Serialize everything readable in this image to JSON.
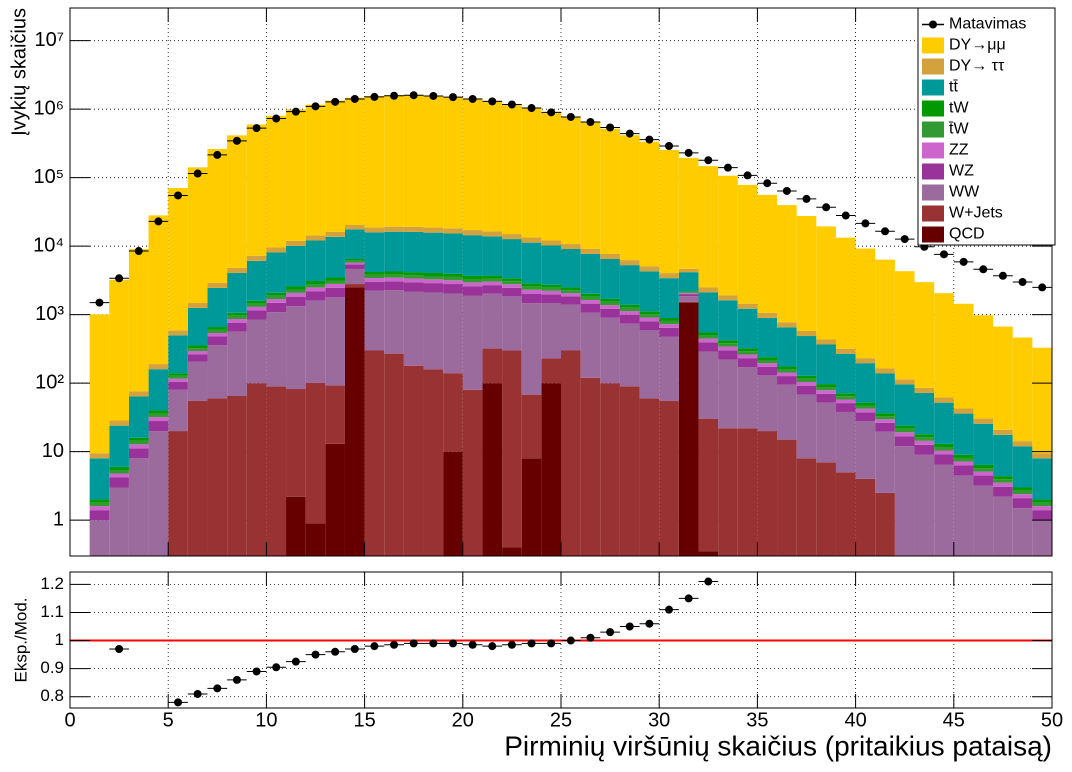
{
  "chart_data": [
    {
      "type": "stacked-histogram",
      "ylabel": "Įvykių skaičius",
      "bins": [
        1,
        2,
        3,
        4,
        5,
        6,
        7,
        8,
        9,
        10,
        11,
        12,
        13,
        14,
        15,
        16,
        17,
        18,
        19,
        20,
        21,
        22,
        23,
        24,
        25,
        26,
        27,
        28,
        29,
        30,
        31,
        32,
        33,
        34,
        35,
        36,
        37,
        38,
        39,
        40,
        41,
        42,
        43,
        44,
        45,
        46,
        47,
        48,
        49,
        50
      ],
      "xlim": [
        0,
        50
      ],
      "xticks": [
        0,
        5,
        10,
        15,
        20,
        25,
        30,
        35,
        40,
        45,
        50
      ],
      "ylim": [
        0.3,
        30000000
      ],
      "yticks": [
        1,
        10,
        {
          "value": 100,
          "label": "10²"
        },
        {
          "value": 1000,
          "label": "10³"
        },
        {
          "value": 10000,
          "label": "10⁴"
        },
        {
          "value": 100000,
          "label": "10⁵"
        },
        {
          "value": 1000000,
          "label": "10⁶"
        },
        {
          "value": 10000000,
          "label": "10⁷"
        }
      ],
      "log_y": true,
      "grid": true,
      "legend": "top-right",
      "data": {
        "name": "Matavimas",
        "color": "#000000",
        "values": [
          1500,
          3400,
          8500,
          23000,
          55000,
          115000,
          215000,
          345000,
          530000,
          730000,
          920000,
          1100000,
          1280000,
          1410000,
          1510000,
          1570000,
          1600000,
          1560000,
          1500000,
          1410000,
          1300000,
          1170000,
          1040000,
          900000,
          770000,
          650000,
          540000,
          440000,
          360000,
          290000,
          230000,
          180000,
          140000,
          108000,
          83000,
          64000,
          49000,
          37000,
          28000,
          21500,
          16500,
          12700,
          9800,
          7600,
          5900,
          4600,
          3700,
          3000,
          2500
        ]
      },
      "series": [
        {
          "name": "DY→μμ",
          "color": "#ffcc00",
          "values": [
            1000,
            3200,
            9000,
            28000,
            70000,
            140000,
            260000,
            410000,
            590000,
            790000,
            980000,
            1150000,
            1320000,
            1450000,
            1530000,
            1580000,
            1600000,
            1560000,
            1500000,
            1420000,
            1310000,
            1180000,
            1040000,
            900000,
            760000,
            630000,
            510000,
            410000,
            330000,
            250000,
            190000,
            145000,
            105000,
            77000,
            55000,
            39000,
            27000,
            19000,
            13000,
            9000,
            6200,
            4200,
            2900,
            2000,
            1400,
            950,
            650,
            450,
            320
          ]
        },
        {
          "name": "DY→ ττ",
          "color": "#d4a23c",
          "values": [
            1.5,
            4.5,
            12,
            30,
            90,
            225,
            450,
            750,
            1125,
            1500,
            1875,
            2250,
            2550,
            2775,
            2925,
            3000,
            3000,
            2925,
            2850,
            2700,
            2550,
            2325,
            2100,
            1875,
            1650,
            1425,
            1200,
            975,
            795,
            630,
            495,
            390,
            300,
            225,
            165,
            120,
            90,
            67.5,
            49.5,
            36,
            25.5,
            18,
            13.5,
            9.75,
            6.75,
            4.8,
            3.3,
            2.25,
            1.5
          ]
        },
        {
          "name": "tt̄",
          "color": "#009999",
          "values": [
            6,
            18,
            48,
            120,
            360,
            900,
            1800,
            3000,
            4500,
            6000,
            7500,
            9000,
            10200,
            11100,
            11700,
            12000,
            12000,
            11700,
            11400,
            10800,
            10200,
            9300,
            8400,
            7500,
            6600,
            5700,
            4800,
            3900,
            3180,
            2520,
            1980,
            1560,
            1200,
            900,
            660,
            480,
            360,
            270,
            198,
            144,
            102,
            72,
            54,
            39,
            27,
            19.2,
            13.2,
            9,
            6
          ]
        },
        {
          "name": "tW",
          "color": "#009900",
          "values": [
            0.2,
            0.6,
            1.6,
            4,
            12,
            30,
            60,
            100,
            150,
            200,
            250,
            300,
            340,
            370,
            390,
            400,
            400,
            390,
            380,
            360,
            340,
            310,
            280,
            250,
            220,
            190,
            160,
            130,
            106,
            84,
            66,
            52,
            40,
            30,
            22,
            16,
            12,
            9,
            6.6,
            4.8,
            3.4,
            2.4,
            1.8,
            1.3,
            0.9,
            0.64,
            0.44,
            0.3,
            0.2
          ]
        },
        {
          "name": "t̄W",
          "color": "#339933",
          "values": [
            0.2,
            0.6,
            1.6,
            4,
            12,
            30,
            60,
            100,
            150,
            200,
            250,
            300,
            340,
            370,
            390,
            400,
            400,
            390,
            380,
            360,
            340,
            310,
            280,
            250,
            220,
            190,
            160,
            130,
            106,
            84,
            66,
            52,
            40,
            30,
            22,
            16,
            12,
            9,
            6.6,
            4.8,
            3.4,
            2.4,
            1.8,
            1.3,
            0.9,
            0.64,
            0.44,
            0.3,
            0.2
          ]
        },
        {
          "name": "ZZ",
          "color": "#cc66cc",
          "values": [
            0.2,
            0.6,
            1.6,
            4,
            12,
            30,
            60,
            100,
            150,
            200,
            250,
            300,
            340,
            370,
            390,
            400,
            400,
            390,
            380,
            360,
            340,
            310,
            280,
            250,
            220,
            190,
            160,
            130,
            106,
            84,
            66,
            52,
            40,
            30,
            22,
            16,
            12,
            9,
            6.6,
            4.8,
            3.4,
            2.4,
            1.8,
            1.3,
            0.9,
            0.64,
            0.44,
            0.3,
            0.2
          ]
        },
        {
          "name": "WZ",
          "color": "#993399",
          "values": [
            0.4,
            1.2,
            3.2,
            8,
            24,
            60,
            120,
            200,
            300,
            400,
            500,
            600,
            680,
            740,
            780,
            800,
            800,
            780,
            760,
            720,
            680,
            620,
            560,
            500,
            440,
            380,
            320,
            260,
            212,
            168,
            132,
            104,
            80,
            60,
            44,
            32,
            24,
            18,
            13.2,
            9.6,
            6.8,
            4.8,
            3.6,
            2.6,
            1.8,
            1.28,
            0.88,
            0.6,
            0.4
          ]
        },
        {
          "name": "WW",
          "color": "#9c6b9e",
          "values": [
            1,
            3,
            8,
            20,
            60,
            150,
            300,
            500,
            750,
            1000,
            1250,
            1500,
            1700,
            1850,
            1950,
            2000,
            2000,
            1950,
            1900,
            1800,
            1700,
            1550,
            1400,
            1250,
            1100,
            950,
            800,
            650,
            530,
            420,
            330,
            260,
            200,
            150,
            110,
            80,
            60,
            45,
            33,
            24,
            17,
            12,
            9,
            6.5,
            4.5,
            3.2,
            2.2,
            1.5,
            1
          ]
        },
        {
          "name": "W+Jets",
          "color": "#993333",
          "values": [
            0,
            0,
            0,
            0,
            20,
            55,
            60,
            65,
            100,
            90,
            80,
            100,
            80,
            300,
            300,
            270,
            180,
            160,
            130,
            80,
            220,
            300,
            60,
            130,
            300,
            120,
            100,
            90,
            60,
            55,
            35,
            30,
            22,
            22,
            20,
            15,
            8,
            7,
            5,
            4,
            2.5,
            0,
            0,
            0,
            0,
            0,
            0,
            0,
            0
          ]
        },
        {
          "name": "QCD",
          "color": "#660000",
          "values": [
            0,
            0,
            0,
            0,
            0,
            0,
            0,
            0,
            0,
            0,
            2.2,
            0.9,
            13,
            2500,
            0,
            0,
            0,
            0,
            10,
            0.3,
            100,
            0.4,
            8,
            100,
            0,
            0,
            0,
            0,
            0,
            0,
            1500,
            0.35,
            0,
            0,
            0,
            0,
            0,
            0,
            0,
            0,
            0,
            0,
            0,
            0,
            0,
            0,
            0,
            0,
            0
          ]
        }
      ]
    },
    {
      "type": "ratio",
      "ylabel": "Eksp./Mod.",
      "xlabel": "Pirminių viršūnių skaičius (pritaikius pataisą)",
      "xlim": [
        0,
        50
      ],
      "xticks": [
        0,
        5,
        10,
        15,
        20,
        25,
        30,
        35,
        40,
        45,
        50
      ],
      "ylim": [
        0.76,
        1.244
      ],
      "yticks": [
        0.8,
        0.9,
        1,
        1.1,
        1.2
      ],
      "grid": true,
      "reference_line": {
        "value": 1,
        "color": "#ff0000"
      },
      "x": [
        1.5,
        2.5,
        3.5,
        4.5,
        5.5,
        6.5,
        7.5,
        8.5,
        9.5,
        10.5,
        11.5,
        12.5,
        13.5,
        14.5,
        15.5,
        16.5,
        17.5,
        18.5,
        19.5,
        20.5,
        21.5,
        22.5,
        23.5,
        24.5,
        25.5,
        26.5,
        27.5,
        28.5,
        29.5,
        30.5,
        31.5,
        32.5,
        33.5,
        34.5,
        35.5,
        36.5,
        37.5,
        38.5,
        39.5,
        40.5,
        41.5,
        42.5,
        43.5,
        44.5,
        45.5,
        46.5,
        47.5,
        48.5,
        49.5
      ],
      "values": [
        null,
        0.97,
        null,
        null,
        0.78,
        0.81,
        0.83,
        0.86,
        0.89,
        0.905,
        0.925,
        0.95,
        0.96,
        0.97,
        0.98,
        0.985,
        0.99,
        0.99,
        0.99,
        0.985,
        0.98,
        0.985,
        0.99,
        0.99,
        1.0,
        1.01,
        1.03,
        1.05,
        1.06,
        1.11,
        1.15,
        1.21,
        null,
        null,
        null,
        null,
        null,
        null,
        null,
        null,
        null,
        null,
        null,
        null,
        null,
        null,
        null,
        null,
        null
      ]
    }
  ]
}
